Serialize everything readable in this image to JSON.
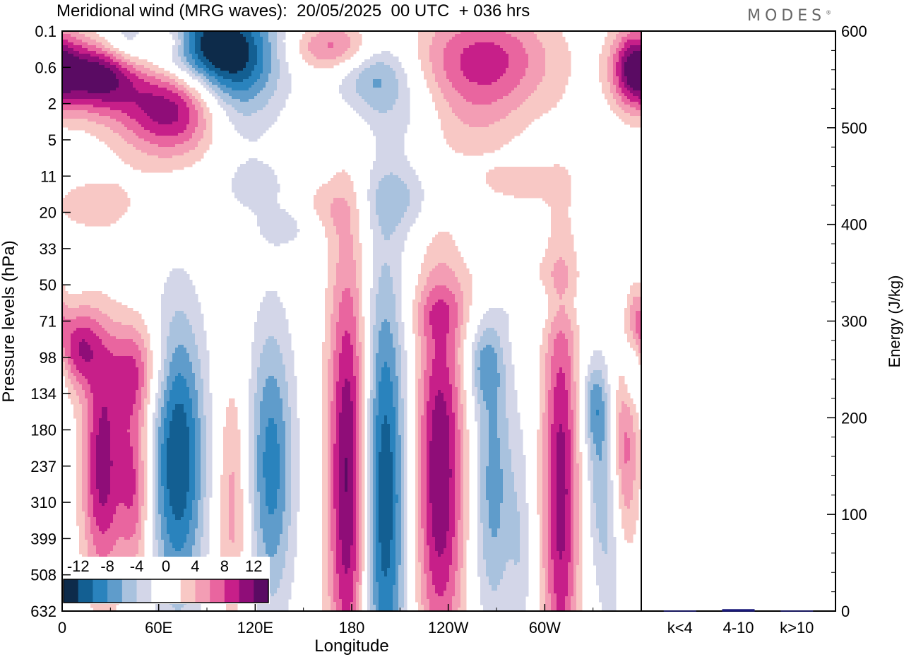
{
  "header": {
    "title": "Meridional wind (MRG waves):  20/05/2025  00 UTC  + 036 hrs",
    "brand": "MODES",
    "brand_mark": "®"
  },
  "chart_data": [
    {
      "type": "heatmap",
      "title": "Meridional wind (MRG waves):  20/05/2025  00 UTC  + 036 hrs",
      "xlabel": "Longitude",
      "ylabel": "Pressure levels (hPa)",
      "x_ticks": [
        "0",
        "60E",
        "120E",
        "180",
        "120W",
        "60W"
      ],
      "y_ticks": [
        "0.1",
        "0.6",
        "2",
        "5",
        "11",
        "20",
        "33",
        "50",
        "71",
        "98",
        "134",
        "180",
        "237",
        "310",
        "399",
        "508",
        "632"
      ],
      "colorbar": {
        "labels": [
          "-12",
          "-8",
          "-4",
          "0",
          "4",
          "8",
          "12"
        ],
        "colors": [
          "#0d2b4a",
          "#135f92",
          "#2a83bd",
          "#5f9ccb",
          "#a9c2de",
          "#d3d6e8",
          "#ffffff",
          "#ffffff",
          "#f8c8c5",
          "#f39db4",
          "#e9659f",
          "#c71f89",
          "#8f0d78",
          "#5a0b63"
        ]
      },
      "blobs": [
        {
          "lon": 90,
          "lev": 0.4,
          "w": 28,
          "h": 0.9,
          "v": -13
        },
        {
          "lon": 104,
          "lev": 1.6,
          "w": 20,
          "h": 1.2,
          "v": -9
        },
        {
          "lon": 20,
          "lev": 1.2,
          "w": 18,
          "h": 0.7,
          "v": 13
        },
        {
          "lon": 72,
          "lev": 2.0,
          "w": 26,
          "h": 1.0,
          "v": 14
        },
        {
          "lon": 45,
          "lev": 0.3,
          "w": 14,
          "h": 0.4,
          "v": -7
        },
        {
          "lon": 60,
          "lev": 0.25,
          "w": 14,
          "h": 0.35,
          "v": 9
        },
        {
          "lon": 170,
          "lev": 0.45,
          "w": 20,
          "h": 0.5,
          "v": 8
        },
        {
          "lon": 193,
          "lev": 1.1,
          "w": 18,
          "h": 0.8,
          "v": -7
        },
        {
          "lon": 220,
          "lev": 2.4,
          "w": 20,
          "h": 0.8,
          "v": -3
        },
        {
          "lon": 262,
          "lev": 0.8,
          "w": 30,
          "h": 1.0,
          "v": 9
        },
        {
          "lon": 250,
          "lev": 2.6,
          "w": 25,
          "h": 0.8,
          "v": 3
        },
        {
          "lon": 355,
          "lev": 1.0,
          "w": 10,
          "h": 0.8,
          "v": 10
        },
        {
          "lon": 20,
          "lev": 4.8,
          "w": 22,
          "h": 0.6,
          "v": 3
        },
        {
          "lon": 165,
          "lev": 4.9,
          "w": 14,
          "h": 0.6,
          "v": 3
        },
        {
          "lon": 210,
          "lev": 4.6,
          "w": 18,
          "h": 0.7,
          "v": -4
        },
        {
          "lon": 120,
          "lev": 4.3,
          "w": 14,
          "h": 0.5,
          "v": -3
        },
        {
          "lon": 285,
          "lev": 4.2,
          "w": 20,
          "h": 0.4,
          "v": 3
        },
        {
          "lon": 140,
          "lev": 5.4,
          "w": 14,
          "h": 0.4,
          "v": -3
        },
        {
          "lon": 282,
          "lev": 7.0,
          "w": 26,
          "h": 0.5,
          "v": 3
        },
        {
          "lon": 295,
          "lev": 7.4,
          "w": 22,
          "h": 0.5,
          "v": -3
        },
        {
          "lon": 235,
          "lev": 7.8,
          "w": 14,
          "h": 0.5,
          "v": 3
        },
        {
          "lon": 10,
          "lev": 8.7,
          "w": 10,
          "h": 0.8,
          "v": 9
        },
        {
          "lon": 45,
          "lev": 9.3,
          "w": 12,
          "h": 1.0,
          "v": 7
        },
        {
          "lon": 25,
          "lev": 12.0,
          "w": 9,
          "h": 2.3,
          "v": 11
        },
        {
          "lon": 45,
          "lev": 12.5,
          "w": 7,
          "h": 1.8,
          "v": 8
        },
        {
          "lon": 72,
          "lev": 11.8,
          "w": 12,
          "h": 2.8,
          "v": -12
        },
        {
          "lon": 130,
          "lev": 12.0,
          "w": 10,
          "h": 2.8,
          "v": -9
        },
        {
          "lon": 106,
          "lev": 13.0,
          "w": 7,
          "h": 2.5,
          "v": 5
        },
        {
          "lon": 178,
          "lev": 12.3,
          "w": 9,
          "h": 4.4,
          "v": 13
        },
        {
          "lon": 200,
          "lev": 12.8,
          "w": 10,
          "h": 4.4,
          "v": -12
        },
        {
          "lon": 235,
          "lev": 12.2,
          "w": 11,
          "h": 3.8,
          "v": 12
        },
        {
          "lon": 268,
          "lev": 12.5,
          "w": 9,
          "h": 2.8,
          "v": -7
        },
        {
          "lon": 310,
          "lev": 12.7,
          "w": 8,
          "h": 4.3,
          "v": 11
        },
        {
          "lon": 334,
          "lev": 12.0,
          "w": 6,
          "h": 2.0,
          "v": -5
        },
        {
          "lon": 350,
          "lev": 11.5,
          "w": 6,
          "h": 2.0,
          "v": 7
        },
        {
          "lon": 355,
          "lev": 9.2,
          "w": 5,
          "h": 0.8,
          "v": -6
        },
        {
          "lon": 357,
          "lev": 8.0,
          "w": 4,
          "h": 0.7,
          "v": 5
        },
        {
          "lon": 262,
          "lev": 9.2,
          "w": 8,
          "h": 0.8,
          "v": -5
        },
        {
          "lon": 330,
          "lev": 10.3,
          "w": 6,
          "h": 0.8,
          "v": -5
        },
        {
          "lon": 285,
          "lev": 14.5,
          "w": 5,
          "h": 2.5,
          "v": -3
        },
        {
          "lon": 342,
          "lev": 14.5,
          "w": 6,
          "h": 2.5,
          "v": -3
        }
      ]
    },
    {
      "type": "bar",
      "categories": [
        "k<4",
        "4-10",
        "k>10"
      ],
      "values": [
        0,
        2,
        0
      ],
      "ylabel": "Energy (J/kg)",
      "ylim": [
        0,
        600
      ],
      "y_ticks": [
        "0",
        "100",
        "200",
        "300",
        "400",
        "500",
        "600"
      ],
      "bar_color": "#1a1a7a"
    }
  ]
}
